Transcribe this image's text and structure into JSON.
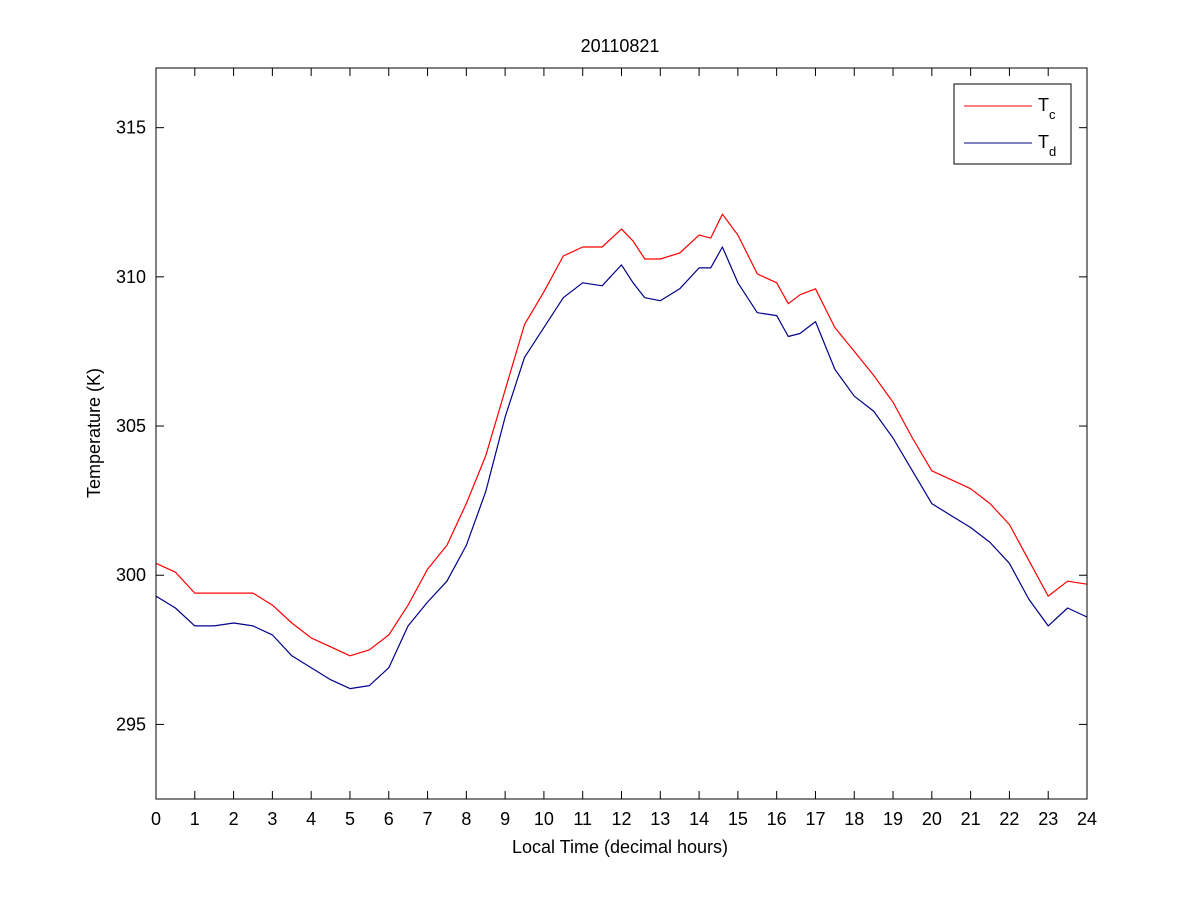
{
  "chart_data": {
    "type": "line",
    "title": "20110821",
    "xlabel": "Local Time (decimal hours)",
    "ylabel": "Temperature (K)",
    "xlim": [
      0,
      24
    ],
    "ylim": [
      292.5,
      317
    ],
    "xticks": [
      0,
      1,
      2,
      3,
      4,
      5,
      6,
      7,
      8,
      9,
      10,
      11,
      12,
      13,
      14,
      15,
      16,
      17,
      18,
      19,
      20,
      21,
      22,
      23,
      24
    ],
    "yticks": [
      295,
      300,
      305,
      310,
      315
    ],
    "grid": false,
    "legend_position": "top-right",
    "series": [
      {
        "name": "T",
        "subscript": "c",
        "color": "#ff0000",
        "x": [
          0,
          0.5,
          1,
          1.5,
          2,
          2.5,
          3,
          3.5,
          4,
          4.5,
          5,
          5.5,
          6,
          6.5,
          7,
          7.5,
          8,
          8.5,
          9,
          9.5,
          10,
          10.5,
          11,
          11.5,
          12,
          12.3,
          12.6,
          13,
          13.5,
          14,
          14.3,
          14.6,
          15,
          15.5,
          16,
          16.3,
          16.6,
          17,
          17.5,
          18,
          18.5,
          19,
          19.5,
          20,
          20.5,
          21,
          21.5,
          22,
          22.5,
          23,
          23.5,
          24
        ],
        "y": [
          300.4,
          300.1,
          299.4,
          299.4,
          299.4,
          299.4,
          299.0,
          298.4,
          297.9,
          297.6,
          297.3,
          297.5,
          298.0,
          299.0,
          300.2,
          301.0,
          302.4,
          304.0,
          306.2,
          308.4,
          309.5,
          310.7,
          311.0,
          311.0,
          311.6,
          311.2,
          310.6,
          310.6,
          310.8,
          311.4,
          311.3,
          312.1,
          311.4,
          310.1,
          309.8,
          309.1,
          309.4,
          309.6,
          308.3,
          307.5,
          306.7,
          305.8,
          304.6,
          303.5,
          303.2,
          302.9,
          302.4,
          301.7,
          300.5,
          299.3,
          299.8,
          299.7
        ]
      },
      {
        "name": "T",
        "subscript": "d",
        "color": "#00008b",
        "x": [
          0,
          0.5,
          1,
          1.5,
          2,
          2.5,
          3,
          3.5,
          4,
          4.5,
          5,
          5.5,
          6,
          6.5,
          7,
          7.5,
          8,
          8.5,
          9,
          9.5,
          10,
          10.5,
          11,
          11.5,
          12,
          12.3,
          12.6,
          13,
          13.5,
          14,
          14.3,
          14.6,
          15,
          15.5,
          16,
          16.3,
          16.6,
          17,
          17.5,
          18,
          18.5,
          19,
          19.5,
          20,
          20.5,
          21,
          21.5,
          22,
          22.5,
          23,
          23.5,
          24
        ],
        "y": [
          299.3,
          298.9,
          298.3,
          298.3,
          298.4,
          298.3,
          298.0,
          297.3,
          296.9,
          296.5,
          296.2,
          296.3,
          296.9,
          298.3,
          299.1,
          299.8,
          301.0,
          302.8,
          305.3,
          307.3,
          308.3,
          309.3,
          309.8,
          309.7,
          310.4,
          309.8,
          309.3,
          309.2,
          309.6,
          310.3,
          310.3,
          311.0,
          309.8,
          308.8,
          308.7,
          308.0,
          308.1,
          308.5,
          306.9,
          306.0,
          305.5,
          304.6,
          303.5,
          302.4,
          302.0,
          301.6,
          301.1,
          300.4,
          299.2,
          298.3,
          298.9,
          298.6
        ]
      }
    ]
  }
}
